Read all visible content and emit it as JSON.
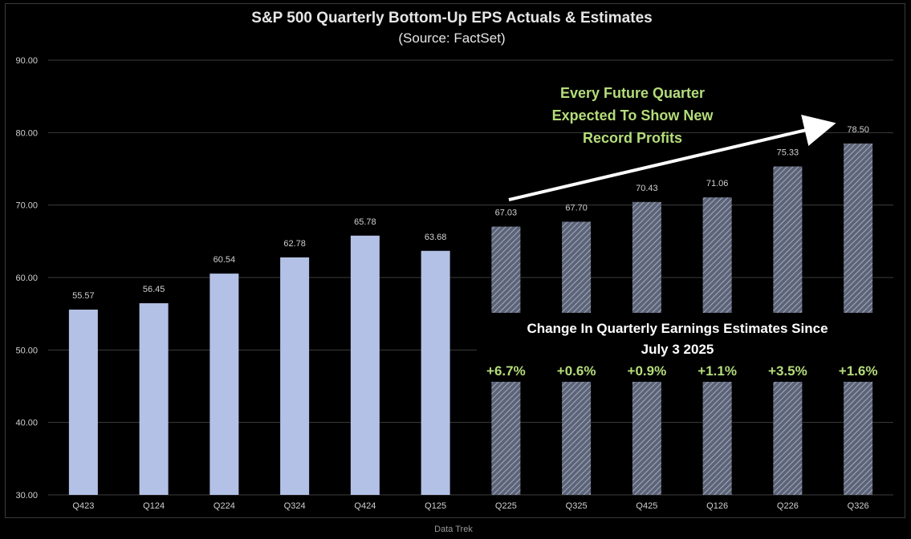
{
  "chart_data": {
    "type": "bar",
    "title": "S&P 500 Quarterly Bottom-Up EPS Actuals & Estimates",
    "subtitle": "(Source: FactSet)",
    "categories": [
      "Q423",
      "Q124",
      "Q224",
      "Q324",
      "Q424",
      "Q125",
      "Q225",
      "Q325",
      "Q425",
      "Q126",
      "Q226",
      "Q326"
    ],
    "values": [
      55.57,
      56.45,
      60.54,
      62.78,
      65.78,
      63.68,
      67.03,
      67.7,
      70.43,
      71.06,
      75.33,
      78.5
    ],
    "value_labels": [
      "55.57",
      "56.45",
      "60.54",
      "62.78",
      "65.78",
      "63.68",
      "67.03",
      "67.70",
      "70.43",
      "71.06",
      "75.33",
      "78.50"
    ],
    "estimate_flags": [
      false,
      false,
      false,
      false,
      false,
      false,
      true,
      true,
      true,
      true,
      true,
      true
    ],
    "ylim": [
      30,
      90
    ],
    "yticks": [
      "30.00",
      "40.00",
      "50.00",
      "60.00",
      "70.00",
      "80.00",
      "90.00"
    ],
    "xlabel": "",
    "ylabel": "",
    "grid": true,
    "colors": {
      "actual_bar": "#b4c1e6",
      "estimate_bar": "#5c6479",
      "estimate_hatch": "#b7bccb",
      "grid": "#3c3c3c",
      "background": "#000000"
    },
    "annotations": {
      "future_note": [
        "Every Future Quarter",
        "Expected To Show New",
        "Record Profits"
      ],
      "change_title": [
        "Change In Quarterly Earnings Estimates Since",
        "July 3 2025"
      ],
      "changes": [
        "+6.7%",
        "+0.6%",
        "+0.9%",
        "+1.1%",
        "+3.5%",
        "+1.6%"
      ]
    }
  },
  "footer": "Data Trek"
}
